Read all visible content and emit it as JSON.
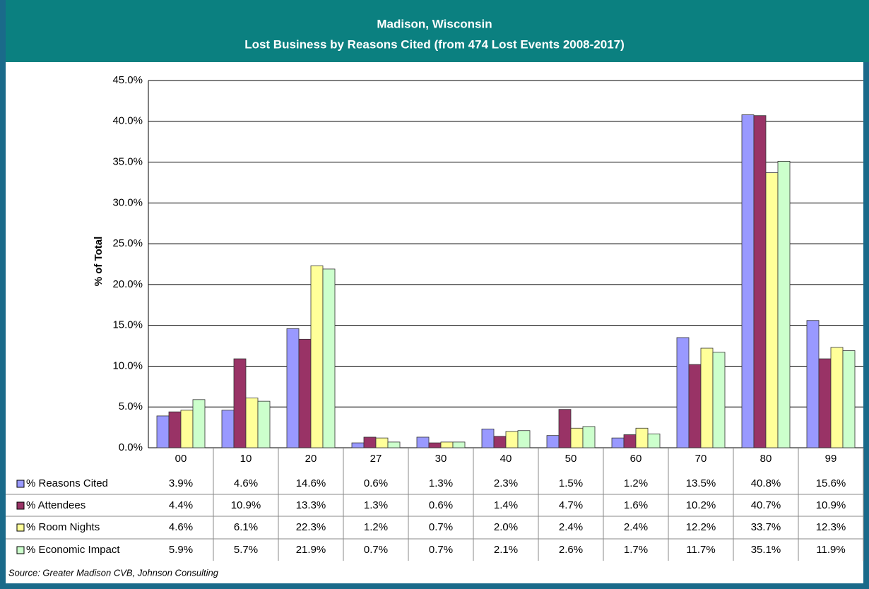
{
  "chart_data": {
    "type": "bar",
    "title": "Madison, Wisconsin",
    "subtitle": "Lost Business by Reasons Cited (from 474 Lost Events 2008-2017)",
    "y_label": "% of Total",
    "categories": [
      "00",
      "10",
      "20",
      "27",
      "30",
      "40",
      "50",
      "60",
      "70",
      "80",
      "99"
    ],
    "series": [
      {
        "name": "% Reasons Cited",
        "color": "#9999ff",
        "values": [
          3.9,
          4.6,
          14.6,
          0.6,
          1.3,
          2.3,
          1.5,
          1.2,
          13.5,
          40.8,
          15.6
        ],
        "value_labels": [
          "3.9%",
          "4.6%",
          "14.6%",
          "0.6%",
          "1.3%",
          "2.3%",
          "1.5%",
          "1.2%",
          "13.5%",
          "40.8%",
          "15.6%"
        ]
      },
      {
        "name": "% Attendees",
        "color": "#993366",
        "values": [
          4.4,
          10.9,
          13.3,
          1.3,
          0.6,
          1.4,
          4.7,
          1.6,
          10.2,
          40.7,
          10.9
        ],
        "value_labels": [
          "4.4%",
          "10.9%",
          "13.3%",
          "1.3%",
          "0.6%",
          "1.4%",
          "4.7%",
          "1.6%",
          "10.2%",
          "40.7%",
          "10.9%"
        ]
      },
      {
        "name": "% Room Nights",
        "color": "#ffff99",
        "values": [
          4.6,
          6.1,
          22.3,
          1.2,
          0.7,
          2.0,
          2.4,
          2.4,
          12.2,
          33.7,
          12.3
        ],
        "value_labels": [
          "4.6%",
          "6.1%",
          "22.3%",
          "1.2%",
          "0.7%",
          "2.0%",
          "2.4%",
          "2.4%",
          "12.2%",
          "33.7%",
          "12.3%"
        ]
      },
      {
        "name": "% Economic Impact",
        "color": "#ccffcc",
        "values": [
          5.9,
          5.7,
          21.9,
          0.7,
          0.7,
          2.1,
          2.6,
          1.7,
          11.7,
          35.1,
          11.9
        ],
        "value_labels": [
          "5.9%",
          "5.7%",
          "21.9%",
          "0.7%",
          "0.7%",
          "2.1%",
          "2.6%",
          "1.7%",
          "11.7%",
          "35.1%",
          "11.9%"
        ]
      }
    ],
    "ylim": [
      0,
      45
    ],
    "yticks": [
      {
        "value": 0,
        "label": "0.0%"
      },
      {
        "value": 5,
        "label": "5.0%"
      },
      {
        "value": 10,
        "label": "10.0%"
      },
      {
        "value": 15,
        "label": "15.0%"
      },
      {
        "value": 20,
        "label": "20.0%"
      },
      {
        "value": 25,
        "label": "25.0%"
      },
      {
        "value": 30,
        "label": "30.0%"
      },
      {
        "value": 35,
        "label": "35.0%"
      },
      {
        "value": 40,
        "label": "40.0%"
      },
      {
        "value": 45,
        "label": "45.0%"
      }
    ],
    "grid": true,
    "source": "Source: Greater Madison CVB, Johnson Consulting"
  }
}
